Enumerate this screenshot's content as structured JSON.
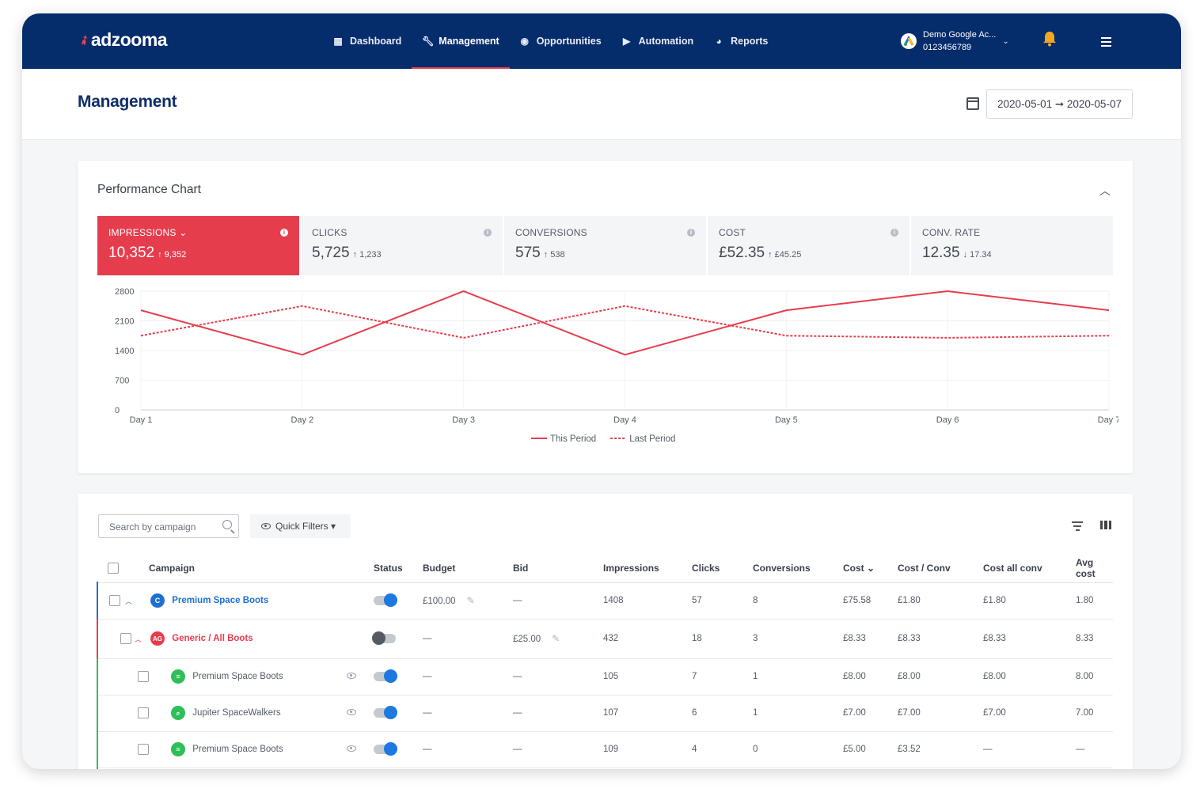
{
  "app": {
    "logo": "adzooma"
  },
  "nav": [
    {
      "label": "Dashboard",
      "icon": "dashboard-icon",
      "active": false
    },
    {
      "label": "Management",
      "icon": "wrench-icon",
      "active": true
    },
    {
      "label": "Opportunities",
      "icon": "opportunities-icon",
      "active": false
    },
    {
      "label": "Automation",
      "icon": "automation-icon",
      "active": false
    },
    {
      "label": "Reports",
      "icon": "reports-icon",
      "active": false
    }
  ],
  "account": {
    "name": "Demo Google Ac...",
    "id": "0123456789"
  },
  "header": {
    "title": "Management",
    "date_range": "2020-05-01 ➞ 2020-05-07"
  },
  "chart_card": {
    "title": "Performance Chart",
    "metrics": [
      {
        "label": "IMPRESSIONS ⌄",
        "value": "10,352",
        "delta": "↑ 9,352",
        "active": true
      },
      {
        "label": "CLICKS",
        "value": "5,725",
        "delta": "↑ 1,233",
        "active": false
      },
      {
        "label": "CONVERSIONS",
        "value": "575",
        "delta": "↑ 538",
        "active": false
      },
      {
        "label": "COST",
        "value": "£52.35",
        "delta": "↑ £45.25",
        "active": false
      },
      {
        "label": "CONV. RATE",
        "value": "12.35",
        "delta": "↓ 17.34",
        "active": false
      }
    ]
  },
  "chart_data": {
    "type": "line",
    "categories": [
      "Day 1",
      "Day 2",
      "Day 3",
      "Day 4",
      "Day 5",
      "Day 6",
      "Day 7"
    ],
    "series": [
      {
        "name": "This Period",
        "values": [
          2350,
          1300,
          2800,
          1300,
          2350,
          2800,
          2350
        ],
        "style": "solid",
        "color": "#e63d4d"
      },
      {
        "name": "Last Period",
        "values": [
          1750,
          2450,
          1700,
          2450,
          1750,
          1700,
          1750
        ],
        "style": "dashed",
        "color": "#e63d4d"
      }
    ],
    "y_ticks": [
      "2800",
      "2100",
      "1400",
      "700",
      "0"
    ],
    "ylim": [
      0,
      2800
    ],
    "grid": true,
    "legend": "bottom"
  },
  "table": {
    "search_placeholder": "Search by campaign",
    "quick_filters": "Quick Filters ▾",
    "columns": [
      "Campaign",
      "Status",
      "Budget",
      "Bid",
      "Impressions",
      "Clicks",
      "Conversions",
      "Cost ⌄",
      "Cost / Conv",
      "Cost all conv",
      "Avg cost"
    ],
    "rows": [
      {
        "level": 0,
        "badge": "C",
        "badge_color": "#1f6fd1",
        "name": "Premium Space Boots",
        "status": "on",
        "budget": "£100.00",
        "bid": "—",
        "impressions": "1408",
        "clicks": "57",
        "conversions": "8",
        "cost": "£75.58",
        "cost_conv": "£1.80",
        "cost_all": "£1.80",
        "avg": "1.80"
      },
      {
        "level": 1,
        "badge": "AG",
        "badge_color": "#e63d4d",
        "name": "Generic / All Boots",
        "status": "off",
        "budget": "—",
        "bid": "£25.00",
        "impressions": "432",
        "clicks": "18",
        "conversions": "3",
        "cost": "£8.33",
        "cost_conv": "£8.33",
        "cost_all": "£8.33",
        "avg": "8.33"
      },
      {
        "level": 2,
        "badge": "≡",
        "badge_color": "#2fbf5a",
        "name": "Premium Space Boots",
        "status": "on",
        "budget": "—",
        "bid": "—",
        "impressions": "105",
        "clicks": "7",
        "conversions": "1",
        "cost": "£8.00",
        "cost_conv": "£8.00",
        "cost_all": "£8.00",
        "avg": "8.00"
      },
      {
        "level": 2,
        "badge": "⌕",
        "badge_color": "#2fbf5a",
        "name": "Jupiter SpaceWalkers",
        "status": "on",
        "budget": "—",
        "bid": "—",
        "impressions": "107",
        "clicks": "6",
        "conversions": "1",
        "cost": "£7.00",
        "cost_conv": "£7.00",
        "cost_all": "£7.00",
        "avg": "7.00"
      },
      {
        "level": 2,
        "badge": "≡",
        "badge_color": "#2fbf5a",
        "name": "Premium Space Boots",
        "status": "on",
        "budget": "—",
        "bid": "—",
        "impressions": "109",
        "clicks": "4",
        "conversions": "0",
        "cost": "£5.00",
        "cost_conv": "£3.52",
        "cost_all": "—",
        "avg": "—"
      }
    ]
  }
}
